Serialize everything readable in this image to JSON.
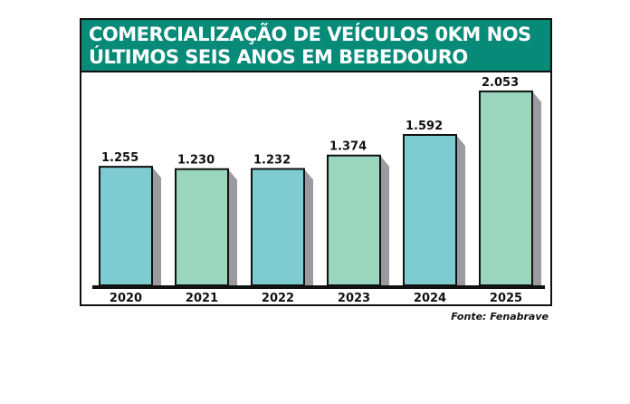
{
  "chart_data": {
    "type": "bar",
    "title": "COMERCIALIZAÇÃO DE VEÍCULOS 0KM NOS ÚLTIMOS SEIS ANOS EM BEBEDOURO",
    "categories": [
      "2020",
      "2021",
      "2022",
      "2023",
      "2024",
      "2025"
    ],
    "values": [
      1255,
      1230,
      1232,
      1374,
      1592,
      2053
    ],
    "value_labels": [
      "1.255",
      "1.230",
      "1.232",
      "1.374",
      "1.592",
      "2.053"
    ],
    "bar_colors": [
      "#7ecbd1",
      "#9ad6bd",
      "#7ecbd1",
      "#9ad6bd",
      "#7ecbd1",
      "#9ad6bd"
    ],
    "shadow_color": "#9a9aa0",
    "title_color": "#078a78",
    "xlabel": "",
    "ylabel": "",
    "ylim": [
      0,
      2100
    ],
    "grid": false,
    "source": "Fonte: Fenabrave"
  }
}
